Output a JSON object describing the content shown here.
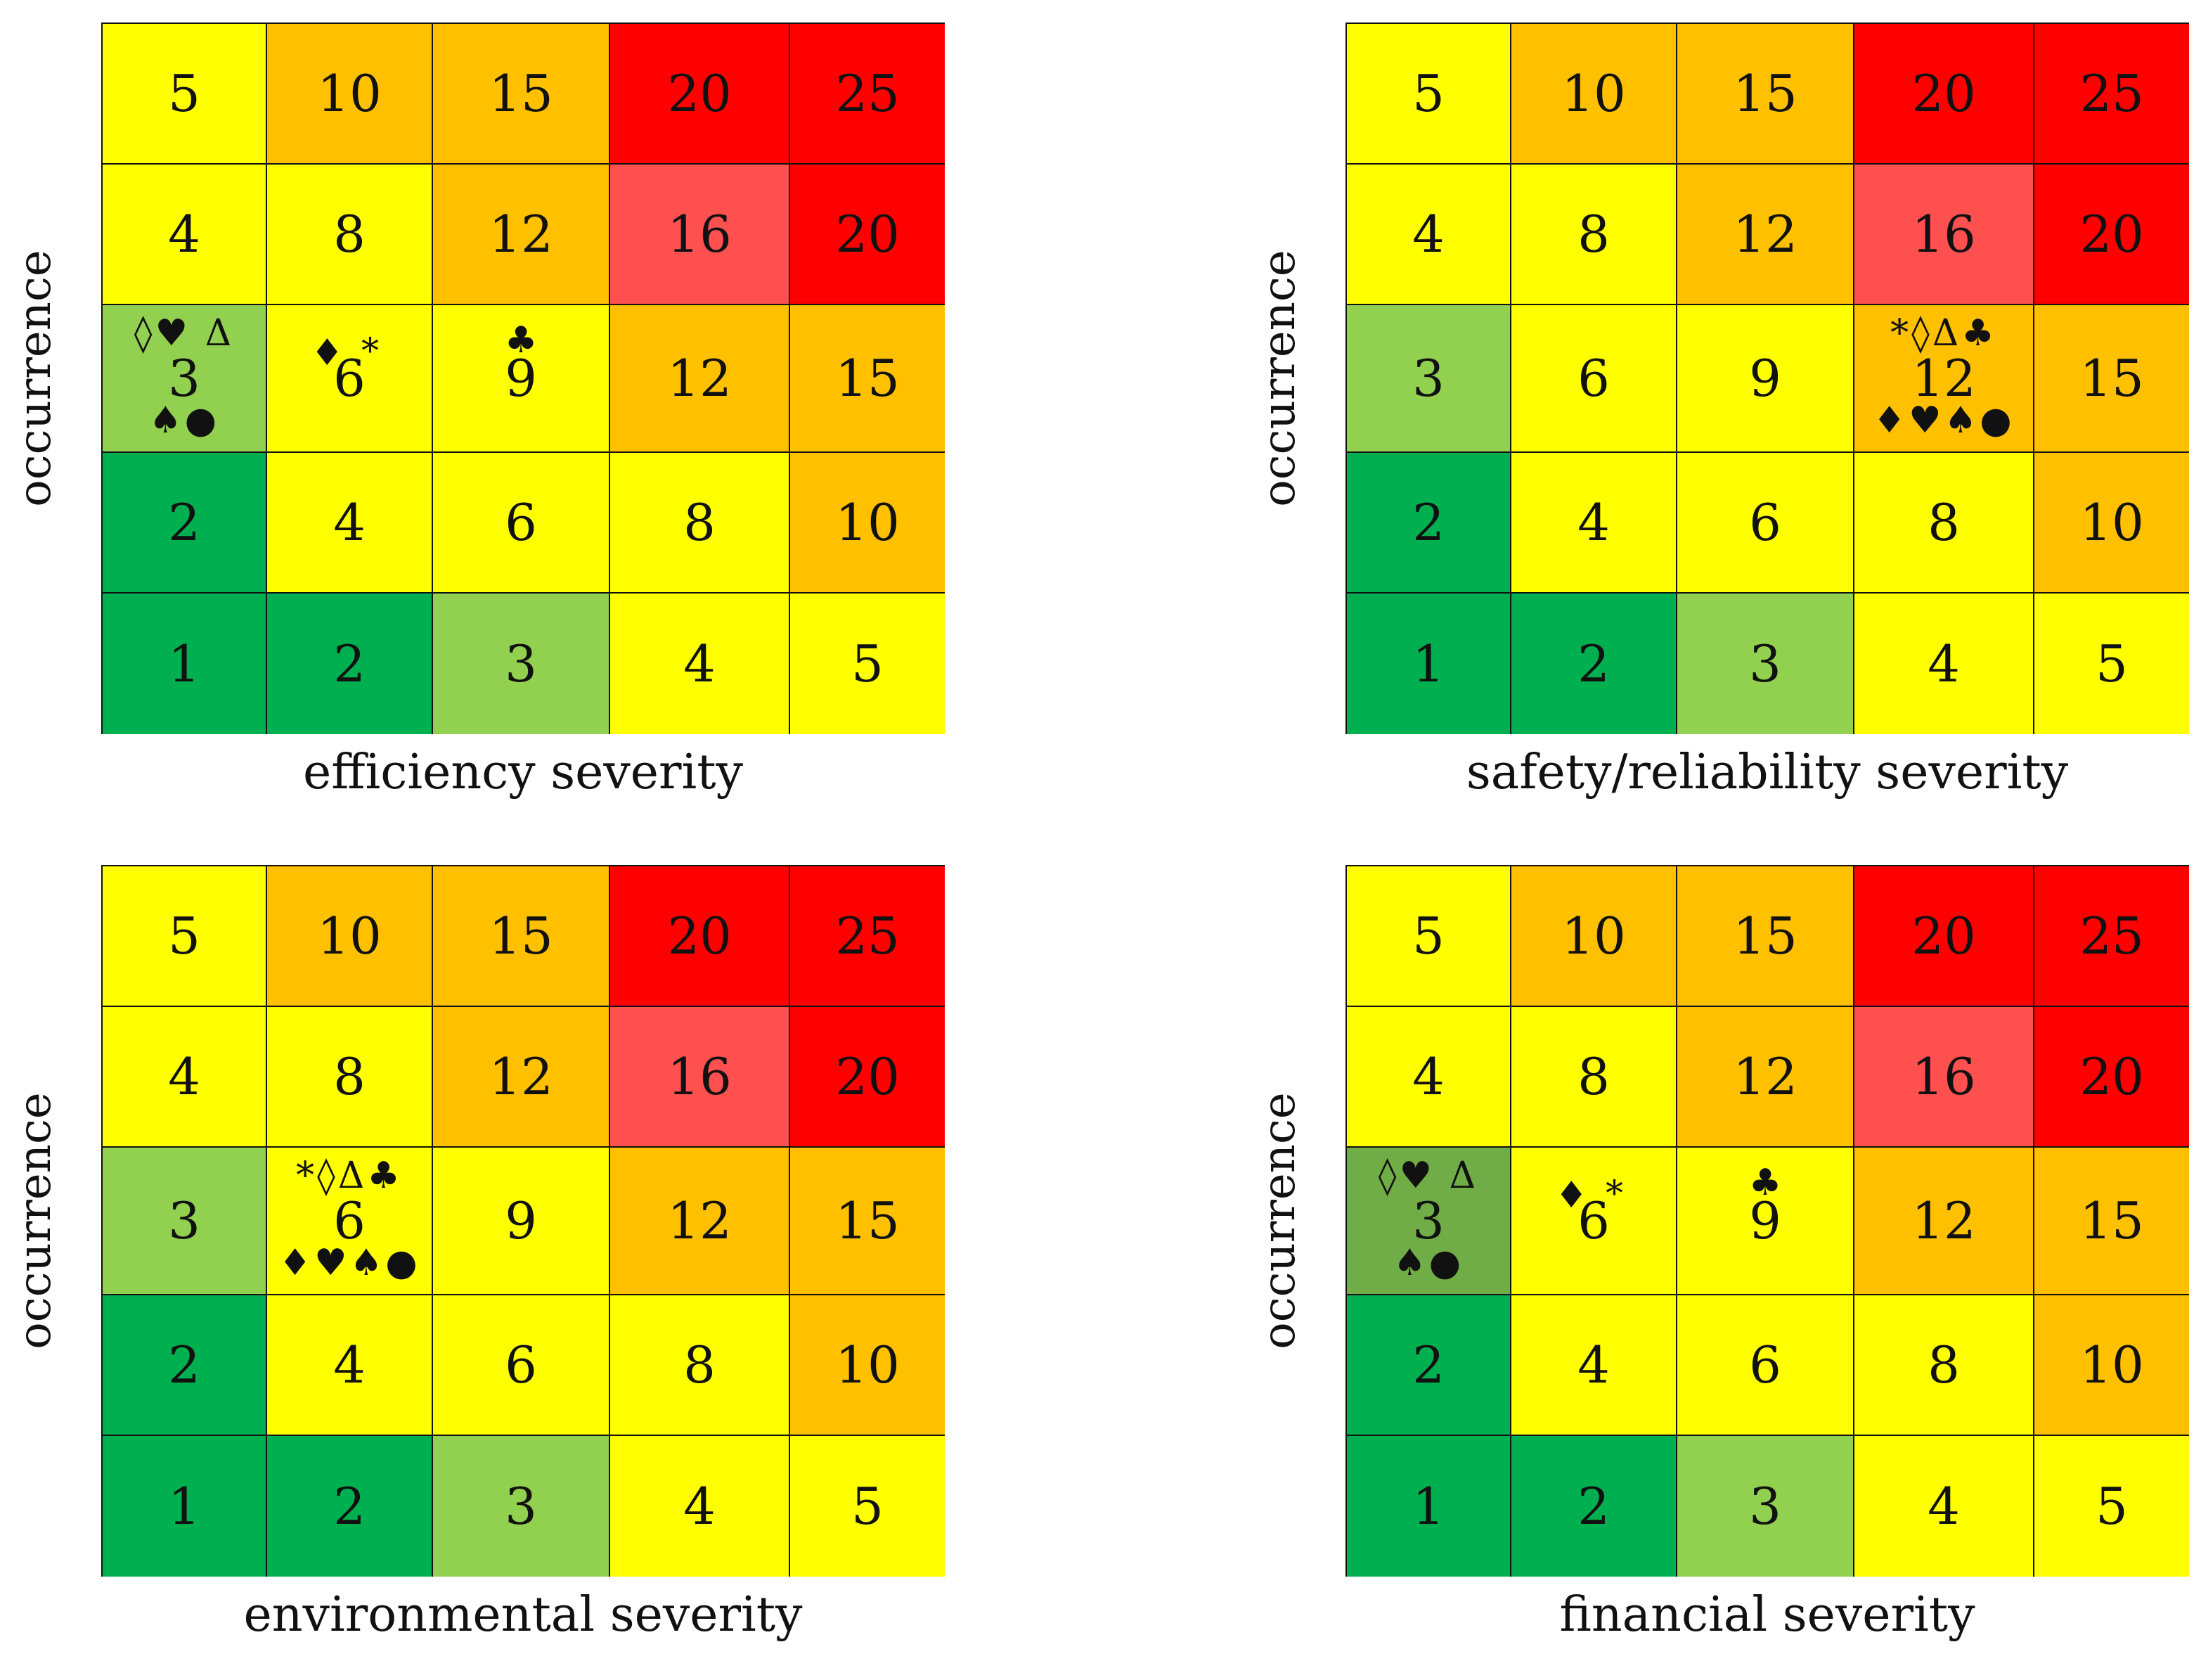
{
  "chart_data": [
    {
      "type": "heatmap",
      "xlabel": "efficiency severity",
      "ylabel": "occurrence",
      "rows": [
        {
          "values": [
            "5",
            "10",
            "15",
            "20",
            "25"
          ]
        },
        {
          "values": [
            "4",
            "8",
            "12",
            "16",
            "20"
          ]
        },
        {
          "values": [
            "3",
            "6",
            "9",
            "12",
            "15"
          ]
        },
        {
          "values": [
            "2",
            "4",
            "6",
            "8",
            "10"
          ]
        },
        {
          "values": [
            "1",
            "2",
            "3",
            "4",
            "5"
          ]
        }
      ],
      "colors": [
        [
          "#ffff00",
          "#ffc000",
          "#ffc000",
          "#ff0000",
          "#ff0000"
        ],
        [
          "#ffff00",
          "#ffff00",
          "#ffc000",
          "#ff5050",
          "#ff0000"
        ],
        [
          "#92d050",
          "#ffff00",
          "#ffff00",
          "#ffc000",
          "#ffc000"
        ],
        [
          "#00b050",
          "#ffff00",
          "#ffff00",
          "#ffff00",
          "#ffc000"
        ],
        [
          "#00b050",
          "#00b050",
          "#92d050",
          "#ffff00",
          "#ffff00"
        ]
      ],
      "markers": [
        {
          "row": 2,
          "col": 0,
          "top": "◊♥ Δ",
          "bottom": "♠●"
        },
        {
          "row": 2,
          "col": 1,
          "left": "♦",
          "side": "*"
        },
        {
          "row": 2,
          "col": 2,
          "over": "♣"
        }
      ]
    },
    {
      "type": "heatmap",
      "xlabel": "safety/reliability severity",
      "ylabel": "occurrence",
      "rows": [
        {
          "values": [
            "5",
            "10",
            "15",
            "20",
            "25"
          ]
        },
        {
          "values": [
            "4",
            "8",
            "12",
            "16",
            "20"
          ]
        },
        {
          "values": [
            "3",
            "6",
            "9",
            "12",
            "15"
          ]
        },
        {
          "values": [
            "2",
            "4",
            "6",
            "8",
            "10"
          ]
        },
        {
          "values": [
            "1",
            "2",
            "3",
            "4",
            "5"
          ]
        }
      ],
      "colors": [
        [
          "#ffff00",
          "#ffc000",
          "#ffc000",
          "#ff0000",
          "#ff0000"
        ],
        [
          "#ffff00",
          "#ffff00",
          "#ffc000",
          "#ff5050",
          "#ff0000"
        ],
        [
          "#92d050",
          "#ffff00",
          "#ffff00",
          "#ffc000",
          "#ffc000"
        ],
        [
          "#00b050",
          "#ffff00",
          "#ffff00",
          "#ffff00",
          "#ffc000"
        ],
        [
          "#00b050",
          "#00b050",
          "#92d050",
          "#ffff00",
          "#ffff00"
        ]
      ],
      "markers": [
        {
          "row": 2,
          "col": 3,
          "top": "*◊Δ♣",
          "bottom": "♦♥♠●"
        }
      ]
    },
    {
      "type": "heatmap",
      "xlabel": "environmental severity",
      "ylabel": "occurrence",
      "rows": [
        {
          "values": [
            "5",
            "10",
            "15",
            "20",
            "25"
          ]
        },
        {
          "values": [
            "4",
            "8",
            "12",
            "16",
            "20"
          ]
        },
        {
          "values": [
            "3",
            "6",
            "9",
            "12",
            "15"
          ]
        },
        {
          "values": [
            "2",
            "4",
            "6",
            "8",
            "10"
          ]
        },
        {
          "values": [
            "1",
            "2",
            "3",
            "4",
            "5"
          ]
        }
      ],
      "colors": [
        [
          "#ffff00",
          "#ffc000",
          "#ffc000",
          "#ff0000",
          "#ff0000"
        ],
        [
          "#ffff00",
          "#ffff00",
          "#ffc000",
          "#ff5050",
          "#ff0000"
        ],
        [
          "#92d050",
          "#ffff00",
          "#ffff00",
          "#ffc000",
          "#ffc000"
        ],
        [
          "#00b050",
          "#ffff00",
          "#ffff00",
          "#ffff00",
          "#ffc000"
        ],
        [
          "#00b050",
          "#00b050",
          "#92d050",
          "#ffff00",
          "#ffff00"
        ]
      ],
      "markers": [
        {
          "row": 2,
          "col": 1,
          "top": "*◊Δ♣",
          "bottom": "♦♥♠●"
        }
      ]
    },
    {
      "type": "heatmap",
      "xlabel": "financial severity",
      "ylabel": "occurrence",
      "rows": [
        {
          "values": [
            "5",
            "10",
            "15",
            "20",
            "25"
          ]
        },
        {
          "values": [
            "4",
            "8",
            "12",
            "16",
            "20"
          ]
        },
        {
          "values": [
            "3",
            "6",
            "9",
            "12",
            "15"
          ]
        },
        {
          "values": [
            "2",
            "4",
            "6",
            "8",
            "10"
          ]
        },
        {
          "values": [
            "1",
            "2",
            "3",
            "4",
            "5"
          ]
        }
      ],
      "colors": [
        [
          "#ffff00",
          "#ffc000",
          "#ffc000",
          "#ff0000",
          "#ff0000"
        ],
        [
          "#ffff00",
          "#ffff00",
          "#ffc000",
          "#ff5050",
          "#ff0000"
        ],
        [
          "#70ad47",
          "#ffff00",
          "#ffff00",
          "#ffc000",
          "#ffc000"
        ],
        [
          "#00b050",
          "#ffff00",
          "#ffff00",
          "#ffff00",
          "#ffc000"
        ],
        [
          "#00b050",
          "#00b050",
          "#92d050",
          "#ffff00",
          "#ffff00"
        ]
      ],
      "markers": [
        {
          "row": 2,
          "col": 0,
          "top": "◊♥ Δ",
          "bottom": "♠●"
        },
        {
          "row": 2,
          "col": 1,
          "left": "♦",
          "side": "*"
        },
        {
          "row": 2,
          "col": 2,
          "over": "♣"
        }
      ]
    }
  ]
}
